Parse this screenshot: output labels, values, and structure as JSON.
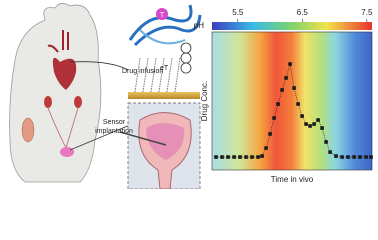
{
  "diagram": {
    "drug_infusion": "Drug infusion",
    "sensor_implantation": [
      "Sensor",
      "implantation"
    ],
    "et": "eT",
    "t": "T"
  },
  "chart_data": {
    "type": "line",
    "xlabel": "Time in vivo",
    "ylabel": "Drug Conc.",
    "colorbar": {
      "label": "pH",
      "lim": [
        5.1,
        7.58
      ],
      "ticks": [
        5.5,
        6.5,
        7.5
      ]
    },
    "x": [
      2.5,
      6.3,
      10,
      13.8,
      17.5,
      21.3,
      25,
      28.8,
      31.3,
      33.8,
      36.3,
      38.8,
      41.3,
      43.8,
      46.3,
      48.8,
      51.3,
      53.8,
      56.3,
      58.8,
      61.3,
      63.8,
      66.3,
      68.8,
      71.3,
      73.8,
      77.5,
      81.3,
      85,
      88.8,
      92.5,
      96.3,
      99.4
    ],
    "series": [
      {
        "color": "#1a1a1a",
        "values": [
          9.4,
          9.4,
          9.4,
          9.4,
          9.4,
          9.4,
          9.4,
          9.4,
          10.1,
          15.9,
          26.1,
          37.7,
          47.8,
          58,
          66.7,
          76.8,
          59.4,
          47.8,
          39.1,
          33.3,
          31.9,
          33.3,
          36.2,
          30.4,
          20.3,
          13,
          10.1,
          9.4,
          9.4,
          9.4,
          9.4,
          9.4,
          9.4
        ]
      }
    ],
    "xlim": [
      0,
      100
    ],
    "ylim": [
      0,
      100
    ]
  }
}
